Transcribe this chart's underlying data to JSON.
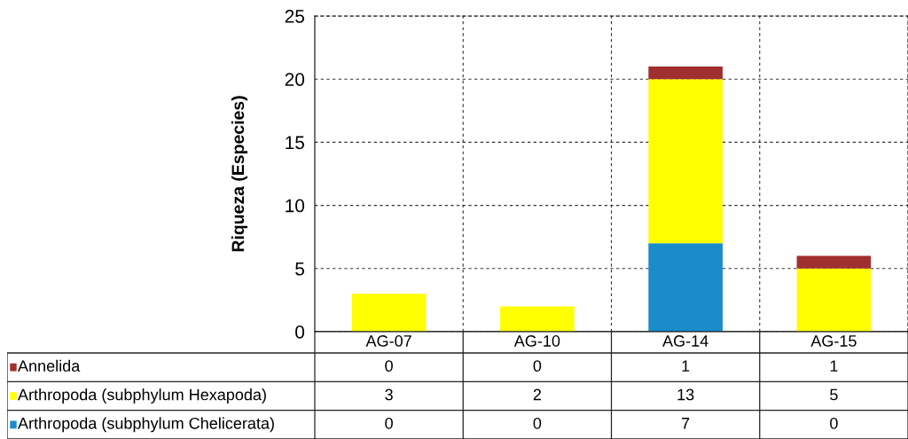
{
  "chart_data": {
    "type": "bar",
    "stacked": true,
    "ylabel": "Riqueza (Especies)",
    "categories": [
      "AG-07",
      "AG-10",
      "AG-14",
      "AG-15"
    ],
    "series": [
      {
        "name": "Arthropoda (subphylum Chelicerata)",
        "color": "#1a8ccc",
        "values": [
          0,
          0,
          7,
          0
        ]
      },
      {
        "name": "Arthropoda (subphylum Hexapoda)",
        "color": "#ffff00",
        "values": [
          3,
          2,
          13,
          5
        ]
      },
      {
        "name": "Annelida",
        "color": "#a0302f",
        "values": [
          0,
          0,
          1,
          1
        ]
      }
    ],
    "ylim": [
      0,
      25
    ],
    "yticks": [
      0,
      5,
      10,
      15,
      20,
      25
    ],
    "grid": true,
    "data_labels": true,
    "legend": "bottom"
  }
}
